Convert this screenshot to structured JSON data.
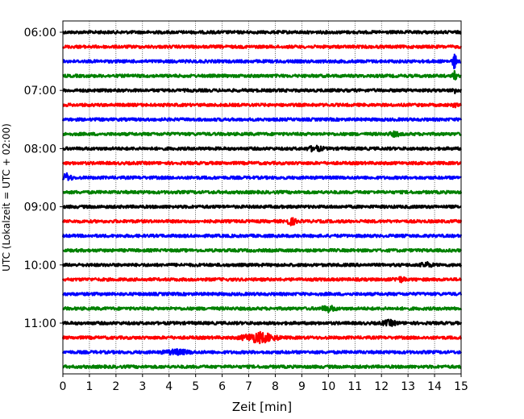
{
  "chart_data": {
    "type": "line",
    "title": "",
    "xlabel": "Zeit  [min]",
    "ylabel": "UTC (Lokalzeit = UTC + 02:00)",
    "xlim": [
      0,
      15
    ],
    "x_ticks": [
      "0",
      "1",
      "2",
      "3",
      "4",
      "5",
      "6",
      "7",
      "8",
      "9",
      "10",
      "11",
      "12",
      "13",
      "14",
      "15"
    ],
    "y_tick_labels": [
      "06:00",
      "07:00",
      "08:00",
      "09:00",
      "10:00",
      "11:00"
    ],
    "grid_x": true,
    "trace_colors": [
      "#000000",
      "#ff0000",
      "#0000ff",
      "#008000"
    ],
    "row_start_times": [
      "06:00",
      "06:15",
      "06:30",
      "06:45",
      "07:00",
      "07:15",
      "07:30",
      "07:45",
      "08:00",
      "08:15",
      "08:30",
      "08:45",
      "09:00",
      "09:15",
      "09:30",
      "09:45",
      "10:00",
      "10:15",
      "10:30",
      "10:45",
      "11:00",
      "11:15",
      "11:30",
      "11:45"
    ],
    "events": [
      {
        "row": 2,
        "minute": 14.75,
        "amplitude": 5.0,
        "width": 0.12
      },
      {
        "row": 3,
        "minute": 14.75,
        "amplitude": 3.0,
        "width": 0.1
      },
      {
        "row": 4,
        "minute": 14.75,
        "amplitude": 2.0,
        "width": 0.1
      },
      {
        "row": 5,
        "minute": 14.75,
        "amplitude": 1.2,
        "width": 0.1
      },
      {
        "row": 7,
        "minute": 12.5,
        "amplitude": 1.2,
        "width": 0.3
      },
      {
        "row": 8,
        "minute": 9.5,
        "amplitude": 1.6,
        "width": 0.4
      },
      {
        "row": 10,
        "minute": 0.15,
        "amplitude": 2.5,
        "width": 0.25
      },
      {
        "row": 13,
        "minute": 8.6,
        "amplitude": 2.0,
        "width": 0.3
      },
      {
        "row": 16,
        "minute": 13.7,
        "amplitude": 1.4,
        "width": 0.3
      },
      {
        "row": 17,
        "minute": 12.7,
        "amplitude": 1.4,
        "width": 0.3
      },
      {
        "row": 19,
        "minute": 10.0,
        "amplitude": 1.6,
        "width": 0.4
      },
      {
        "row": 20,
        "minute": 12.3,
        "amplitude": 1.6,
        "width": 0.4
      },
      {
        "row": 21,
        "minute": 7.4,
        "amplitude": 3.2,
        "width": 0.9
      },
      {
        "row": 22,
        "minute": 4.3,
        "amplitude": 1.4,
        "width": 0.7
      }
    ]
  }
}
